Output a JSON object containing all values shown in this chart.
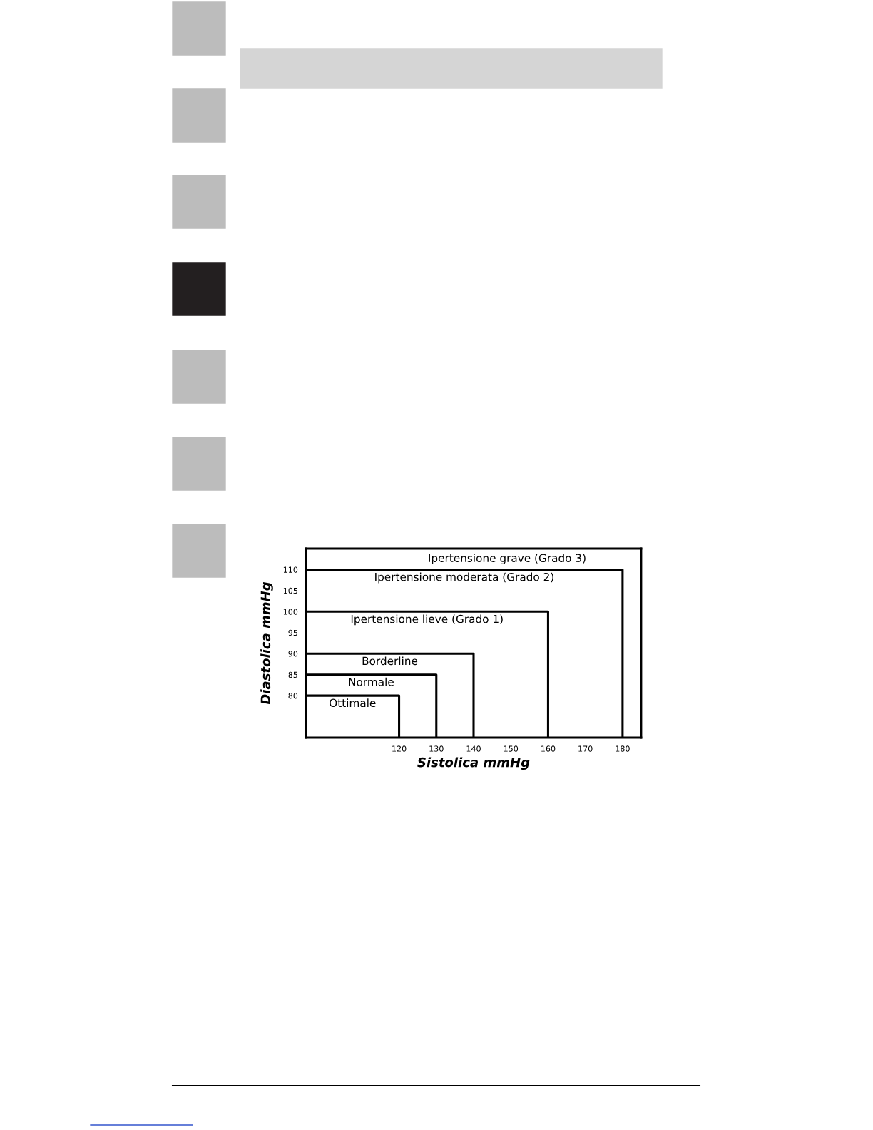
{
  "chart_data": {
    "type": "line",
    "xlabel": "Sistolica mmHg",
    "ylabel": "Diastolica mmHg",
    "xlim": [
      95,
      185
    ],
    "ylim": [
      70,
      115
    ],
    "xticks": [
      120,
      130,
      140,
      150,
      160,
      170,
      180
    ],
    "yticks": [
      80,
      85,
      90,
      95,
      100,
      105,
      110
    ],
    "grid": false,
    "legend": false,
    "marker": "none",
    "line_style": "solid",
    "series": [
      {
        "name": "Ottimale",
        "color": "#000000",
        "x": [
          95,
          120,
          120
        ],
        "values": [
          80,
          80,
          70
        ]
      },
      {
        "name": "Normale",
        "color": "#000000",
        "x": [
          95,
          130,
          130
        ],
        "values": [
          85,
          85,
          70
        ]
      },
      {
        "name": "Borderline",
        "color": "#000000",
        "x": [
          95,
          140,
          140
        ],
        "values": [
          90,
          90,
          70
        ]
      },
      {
        "name": "Ipertensione lieve (Grado 1)",
        "color": "#000000",
        "x": [
          95,
          160,
          160
        ],
        "values": [
          100,
          100,
          70
        ]
      },
      {
        "name": "Ipertensione moderata (Grado 2)",
        "color": "#000000",
        "x": [
          95,
          180,
          180
        ],
        "values": [
          110,
          110,
          70
        ]
      }
    ],
    "annotations": [
      "Ipertensione grave (Grado 3)"
    ]
  }
}
